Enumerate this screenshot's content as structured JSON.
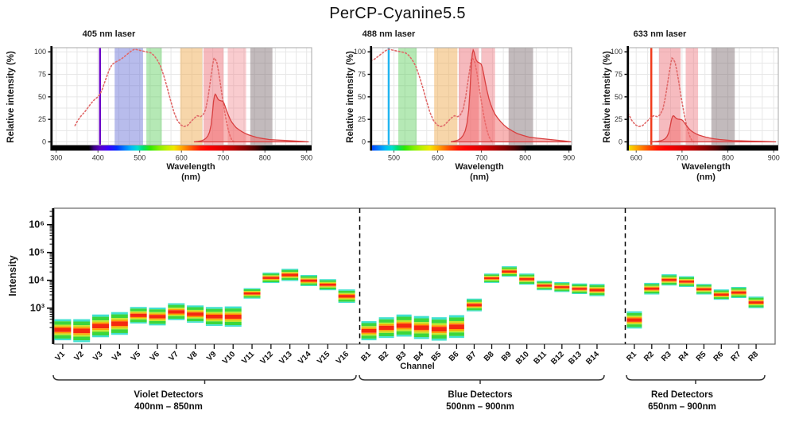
{
  "title": "PerCP-Cyanine5.5",
  "chart_data": {
    "spectra": {
      "type": "area",
      "y_axis": {
        "label": "Relative intensity (%)",
        "ticks": [
          0,
          25,
          50,
          75,
          100
        ],
        "range": [
          0,
          104
        ]
      },
      "x_axis": {
        "label_line1": "Wavelength",
        "label_line2": "(nm)",
        "unit": "nm"
      },
      "excitation_curve": {
        "style": "dotted",
        "color": "#e06a6a",
        "points": [
          [
            345,
            18
          ],
          [
            352,
            24
          ],
          [
            360,
            29
          ],
          [
            368,
            33
          ],
          [
            376,
            38
          ],
          [
            384,
            43
          ],
          [
            392,
            47
          ],
          [
            400,
            50
          ],
          [
            405,
            53
          ],
          [
            410,
            58
          ],
          [
            416,
            66
          ],
          [
            422,
            74
          ],
          [
            428,
            81
          ],
          [
            434,
            86
          ],
          [
            440,
            88
          ],
          [
            448,
            90
          ],
          [
            456,
            92
          ],
          [
            464,
            95
          ],
          [
            472,
            98
          ],
          [
            480,
            101
          ],
          [
            488,
            103
          ],
          [
            496,
            102
          ],
          [
            506,
            101
          ],
          [
            516,
            100
          ],
          [
            526,
            99
          ],
          [
            534,
            96
          ],
          [
            542,
            91
          ],
          [
            550,
            84
          ],
          [
            558,
            73
          ],
          [
            566,
            60
          ],
          [
            574,
            46
          ],
          [
            582,
            33
          ],
          [
            590,
            24
          ],
          [
            598,
            19
          ],
          [
            606,
            17
          ],
          [
            614,
            18
          ],
          [
            622,
            22
          ],
          [
            630,
            26
          ],
          [
            638,
            29
          ],
          [
            646,
            28
          ],
          [
            652,
            30
          ],
          [
            658,
            36
          ],
          [
            664,
            50
          ],
          [
            670,
            70
          ],
          [
            675,
            86
          ],
          [
            678,
            93
          ],
          [
            681,
            92
          ],
          [
            685,
            88
          ],
          [
            689,
            78
          ],
          [
            693,
            66
          ],
          [
            697,
            53
          ],
          [
            701,
            41
          ],
          [
            705,
            30
          ],
          [
            709,
            20
          ],
          [
            713,
            12
          ],
          [
            717,
            6
          ],
          [
            721,
            2
          ],
          [
            726,
            0
          ]
        ]
      },
      "emission_curve": {
        "style": "solid-filled",
        "color": "#d84040",
        "fill": "#f26b6b",
        "points": [
          [
            630,
            0
          ],
          [
            640,
            1
          ],
          [
            647,
            2
          ],
          [
            653,
            4
          ],
          [
            658,
            7
          ],
          [
            663,
            12
          ],
          [
            667,
            20
          ],
          [
            671,
            35
          ],
          [
            674,
            58
          ],
          [
            677,
            85
          ],
          [
            679,
            96
          ],
          [
            681,
            100
          ],
          [
            683,
            98
          ],
          [
            685,
            94
          ],
          [
            688,
            89
          ],
          [
            691,
            87
          ],
          [
            695,
            86
          ],
          [
            699,
            85
          ],
          [
            702,
            81
          ],
          [
            705,
            74
          ],
          [
            709,
            64
          ],
          [
            713,
            55
          ],
          [
            717,
            47
          ],
          [
            721,
            41
          ],
          [
            726,
            35
          ],
          [
            731,
            30
          ],
          [
            737,
            26
          ],
          [
            744,
            22
          ],
          [
            752,
            18
          ],
          [
            760,
            15
          ],
          [
            770,
            12
          ],
          [
            782,
            9
          ],
          [
            795,
            7
          ],
          [
            810,
            5
          ],
          [
            828,
            4
          ],
          [
            848,
            3
          ],
          [
            868,
            2
          ],
          [
            888,
            1
          ],
          [
            905,
            0
          ]
        ]
      },
      "plots": [
        {
          "title": "405 nm laser",
          "laser_nm": 405,
          "laser_color": "#6a00c8",
          "x_range": [
            291,
            912
          ],
          "x_ticks": [
            300,
            400,
            500,
            600,
            700,
            800,
            900
          ],
          "emission_scale": 0.53,
          "filter_bands": [
            {
              "from": 440,
              "to": 508,
              "color": "#6a74d8",
              "opacity": 0.48
            },
            {
              "from": 516,
              "to": 553,
              "color": "#4ecb4e",
              "opacity": 0.42
            },
            {
              "from": 597,
              "to": 650,
              "color": "#f0ae55",
              "opacity": 0.5
            },
            {
              "from": 653,
              "to": 701,
              "color": "#ee7880",
              "opacity": 0.52
            },
            {
              "from": 711,
              "to": 755,
              "color": "#ee7880",
              "opacity": 0.38
            },
            {
              "from": 765,
              "to": 818,
              "color": "#6e5a60",
              "opacity": 0.42
            }
          ]
        },
        {
          "title": "488 nm laser",
          "laser_nm": 488,
          "laser_color": "#1fb4f0",
          "x_range": [
            450,
            906
          ],
          "x_ticks": [
            500,
            600,
            700,
            800,
            900
          ],
          "emission_scale": 1.02,
          "filter_bands": [
            {
              "from": 510,
              "to": 552,
              "color": "#4ecb4e",
              "opacity": 0.42
            },
            {
              "from": 592,
              "to": 645,
              "color": "#f0ae55",
              "opacity": 0.5
            },
            {
              "from": 648,
              "to": 694,
              "color": "#ee7880",
              "opacity": 0.52
            },
            {
              "from": 700,
              "to": 731,
              "color": "#ee7880",
              "opacity": 0.46
            },
            {
              "from": 762,
              "to": 818,
              "color": "#6e5a60",
              "opacity": 0.42
            }
          ]
        },
        {
          "title": "633 nm laser",
          "laser_nm": 633,
          "laser_color": "#f03818",
          "x_range": [
            584,
            910
          ],
          "x_ticks": [
            600,
            700,
            800,
            900
          ],
          "emission_scale": 0.29,
          "filter_bands": [
            {
              "from": 650,
              "to": 697,
              "color": "#ee7880",
              "opacity": 0.5
            },
            {
              "from": 708,
              "to": 735,
              "color": "#ee7880",
              "opacity": 0.46
            },
            {
              "from": 764,
              "to": 815,
              "color": "#6e5a60",
              "opacity": 0.42
            }
          ]
        }
      ],
      "visible_spectrum_stops": [
        [
          300,
          "#000000"
        ],
        [
          378,
          "#000000"
        ],
        [
          390,
          "#3a0080"
        ],
        [
          405,
          "#5a00c8"
        ],
        [
          425,
          "#3a00ff"
        ],
        [
          445,
          "#0030ff"
        ],
        [
          465,
          "#0080ff"
        ],
        [
          480,
          "#00b8f8"
        ],
        [
          495,
          "#00e0d0"
        ],
        [
          508,
          "#00e070"
        ],
        [
          525,
          "#30e800"
        ],
        [
          545,
          "#80f000"
        ],
        [
          565,
          "#c0f000"
        ],
        [
          582,
          "#f0e800"
        ],
        [
          598,
          "#ffb000"
        ],
        [
          612,
          "#ff8000"
        ],
        [
          628,
          "#ff4800"
        ],
        [
          645,
          "#ff1800"
        ],
        [
          665,
          "#fc0000"
        ],
        [
          695,
          "#e00000"
        ],
        [
          725,
          "#b80000"
        ],
        [
          755,
          "#800000"
        ],
        [
          778,
          "#480000"
        ],
        [
          795,
          "#180000"
        ],
        [
          805,
          "#000000"
        ],
        [
          920,
          "#000000"
        ]
      ]
    },
    "detectors": {
      "type": "bar",
      "y_axis": {
        "label": "Intensity",
        "scale": "log",
        "tick_labels": [
          "10³",
          "10⁴",
          "10⁵",
          "10⁶"
        ],
        "tick_values": [
          1000,
          10000,
          100000,
          1000000
        ],
        "range": [
          50,
          4000000
        ]
      },
      "x_axis": {
        "label": "Channel"
      },
      "band_colors": {
        "cyan": "#3fe0d0",
        "green": "#3cd63c",
        "yellow": "#c4e62a",
        "orange": "#ffa000",
        "red": "#f52810"
      },
      "groups": [
        {
          "label": "Violet Detectors",
          "range_label": "400nm – 850nm",
          "channels": [
            {
              "name": "V1",
              "low": 70,
              "mid": 200,
              "high": 400
            },
            {
              "name": "V2",
              "low": 60,
              "mid": 200,
              "high": 400
            },
            {
              "name": "V3",
              "low": 90,
              "mid": 280,
              "high": 590
            },
            {
              "name": "V4",
              "low": 110,
              "mid": 340,
              "high": 720
            },
            {
              "name": "V5",
              "low": 280,
              "mid": 590,
              "high": 1100
            },
            {
              "name": "V6",
              "low": 240,
              "mid": 550,
              "high": 1050
            },
            {
              "name": "V7",
              "low": 370,
              "mid": 770,
              "high": 1500
            },
            {
              "name": "V8",
              "low": 300,
              "mid": 660,
              "high": 1250
            },
            {
              "name": "V9",
              "low": 230,
              "mid": 580,
              "high": 1100
            },
            {
              "name": "V10",
              "low": 215,
              "mid": 590,
              "high": 1150
            },
            {
              "name": "V11",
              "low": 2200,
              "mid": 3600,
              "high": 5200
            },
            {
              "name": "V12",
              "low": 8000,
              "mid": 13000,
              "high": 19000
            },
            {
              "name": "V13",
              "low": 9500,
              "mid": 17000,
              "high": 26000
            },
            {
              "name": "V14",
              "low": 6200,
              "mid": 10500,
              "high": 15500
            },
            {
              "name": "V15",
              "low": 4400,
              "mid": 8000,
              "high": 11000
            },
            {
              "name": "V16",
              "low": 1550,
              "mid": 3000,
              "high": 4700
            }
          ]
        },
        {
          "label": "Blue Detectors",
          "range_label": "500nm – 900nm",
          "channels": [
            {
              "name": "B1",
              "low": 70,
              "mid": 190,
              "high": 340
            },
            {
              "name": "B2",
              "low": 85,
              "mid": 240,
              "high": 470
            },
            {
              "name": "B3",
              "low": 95,
              "mid": 300,
              "high": 590
            },
            {
              "name": "B4",
              "low": 78,
              "mid": 275,
              "high": 520
            },
            {
              "name": "B5",
              "low": 68,
              "mid": 260,
              "high": 470
            },
            {
              "name": "B6",
              "low": 85,
              "mid": 300,
              "high": 560
            },
            {
              "name": "B7",
              "low": 770,
              "mid": 1400,
              "high": 2200
            },
            {
              "name": "B8",
              "low": 8100,
              "mid": 13500,
              "high": 17500
            },
            {
              "name": "B9",
              "low": 13500,
              "mid": 23000,
              "high": 32000
            },
            {
              "name": "B10",
              "low": 7000,
              "mid": 12500,
              "high": 17500
            },
            {
              "name": "B11",
              "low": 4400,
              "mid": 7400,
              "high": 9600
            },
            {
              "name": "B12",
              "low": 3800,
              "mid": 6500,
              "high": 8600
            },
            {
              "name": "B13",
              "low": 3200,
              "mid": 5500,
              "high": 7700
            },
            {
              "name": "B14",
              "low": 2700,
              "mid": 5000,
              "high": 7400
            }
          ]
        },
        {
          "label": "Red Detectors",
          "range_label": "650nm – 900nm",
          "channels": [
            {
              "name": "R1",
              "low": 185,
              "mid": 440,
              "high": 770
            },
            {
              "name": "R2",
              "low": 3100,
              "mid": 5500,
              "high": 8100
            },
            {
              "name": "R3",
              "low": 6500,
              "mid": 11500,
              "high": 16500
            },
            {
              "name": "R4",
              "low": 5800,
              "mid": 9200,
              "high": 14000
            },
            {
              "name": "R5",
              "low": 3100,
              "mid": 5200,
              "high": 7400
            },
            {
              "name": "R6",
              "low": 2000,
              "mid": 3400,
              "high": 4700
            },
            {
              "name": "R7",
              "low": 2300,
              "mid": 4200,
              "high": 5800
            },
            {
              "name": "R8",
              "low": 1000,
              "mid": 1850,
              "high": 2600
            }
          ]
        }
      ]
    }
  }
}
